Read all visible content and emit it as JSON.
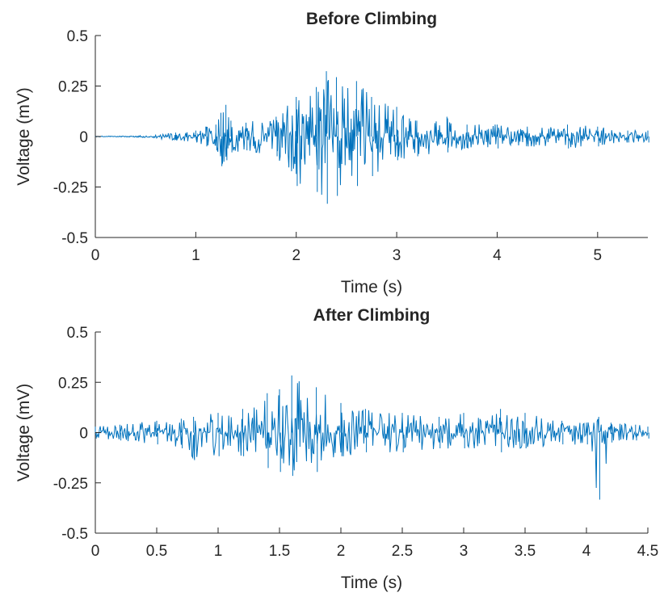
{
  "chart_data": [
    {
      "type": "line",
      "title": "Before Climbing",
      "xlabel": "Time (s)",
      "ylabel": "Voltage (mV)",
      "xlim": [
        0,
        5.5
      ],
      "ylim": [
        -0.5,
        0.5
      ],
      "xticks": [
        0,
        1,
        2,
        3,
        4,
        5
      ],
      "xtick_labels": [
        "0",
        "1",
        "2",
        "3",
        "4",
        "5"
      ],
      "yticks": [
        0.5,
        0.25,
        0,
        -0.25,
        -0.5
      ],
      "ytick_labels": [
        "0.5",
        "0.25",
        "0",
        "-0.25",
        "-0.5"
      ],
      "series": [
        {
          "color": "#0072BD",
          "envelope": {
            "t": [
              0,
              0.4,
              0.6,
              0.8,
              1.0,
              1.1,
              1.2,
              1.25,
              1.3,
              1.35,
              1.5,
              1.8,
              2.0,
              2.2,
              2.3,
              2.4,
              2.6,
              2.75,
              3.0,
              3.2,
              3.5,
              3.7,
              4.0,
              4.3,
              4.7,
              5.0,
              5.3,
              5.5
            ],
            "upper": [
              0.002,
              0.003,
              0.01,
              0.02,
              0.03,
              0.05,
              0.06,
              0.12,
              0.16,
              0.08,
              0.07,
              0.1,
              0.2,
              0.25,
              0.33,
              0.3,
              0.28,
              0.2,
              0.15,
              0.08,
              0.1,
              0.06,
              0.06,
              0.05,
              0.06,
              0.05,
              0.03,
              0.03
            ],
            "lower": [
              -0.002,
              -0.003,
              -0.01,
              -0.02,
              -0.03,
              -0.05,
              -0.07,
              -0.15,
              -0.12,
              -0.08,
              -0.07,
              -0.1,
              -0.25,
              -0.28,
              -0.34,
              -0.3,
              -0.25,
              -0.2,
              -0.12,
              -0.1,
              -0.08,
              -0.06,
              -0.06,
              -0.05,
              -0.06,
              -0.05,
              -0.03,
              -0.03
            ]
          },
          "sampling_rate_hz": 150
        }
      ]
    },
    {
      "type": "line",
      "title": "After Climbing",
      "xlabel": "Time (s)",
      "ylabel": "Voltage (mV)",
      "xlim": [
        0,
        4.5
      ],
      "ylim": [
        -0.5,
        0.5
      ],
      "xticks": [
        0,
        0.5,
        1,
        1.5,
        2,
        2.5,
        3,
        3.5,
        4,
        4.5
      ],
      "xtick_labels": [
        "0",
        "0.5",
        "1",
        "1.5",
        "2",
        "2.5",
        "3",
        "3.5",
        "4",
        "4.5"
      ],
      "yticks": [
        0.5,
        0.25,
        0,
        -0.25,
        -0.5
      ],
      "ytick_labels": [
        "0.5",
        "0.25",
        "0",
        "-0.25",
        "-0.5"
      ],
      "series": [
        {
          "color": "#0072BD",
          "envelope": {
            "t": [
              0,
              0.2,
              0.5,
              0.7,
              0.8,
              1.0,
              1.2,
              1.4,
              1.5,
              1.6,
              1.8,
              2.0,
              2.2,
              2.5,
              2.8,
              3.0,
              3.3,
              3.5,
              3.8,
              4.0,
              4.1,
              4.2,
              4.4,
              4.5
            ],
            "upper": [
              0.03,
              0.04,
              0.06,
              0.07,
              0.08,
              0.1,
              0.12,
              0.2,
              0.22,
              0.29,
              0.23,
              0.15,
              0.12,
              0.1,
              0.08,
              0.1,
              0.12,
              0.1,
              0.06,
              0.05,
              0.08,
              0.05,
              0.04,
              0.03
            ],
            "lower": [
              -0.03,
              -0.04,
              -0.06,
              -0.08,
              -0.14,
              -0.12,
              -0.12,
              -0.18,
              -0.2,
              -0.22,
              -0.2,
              -0.12,
              -0.1,
              -0.1,
              -0.08,
              -0.08,
              -0.1,
              -0.08,
              -0.06,
              -0.06,
              -0.34,
              -0.05,
              -0.04,
              -0.03
            ]
          },
          "sampling_rate_hz": 150
        }
      ]
    }
  ]
}
